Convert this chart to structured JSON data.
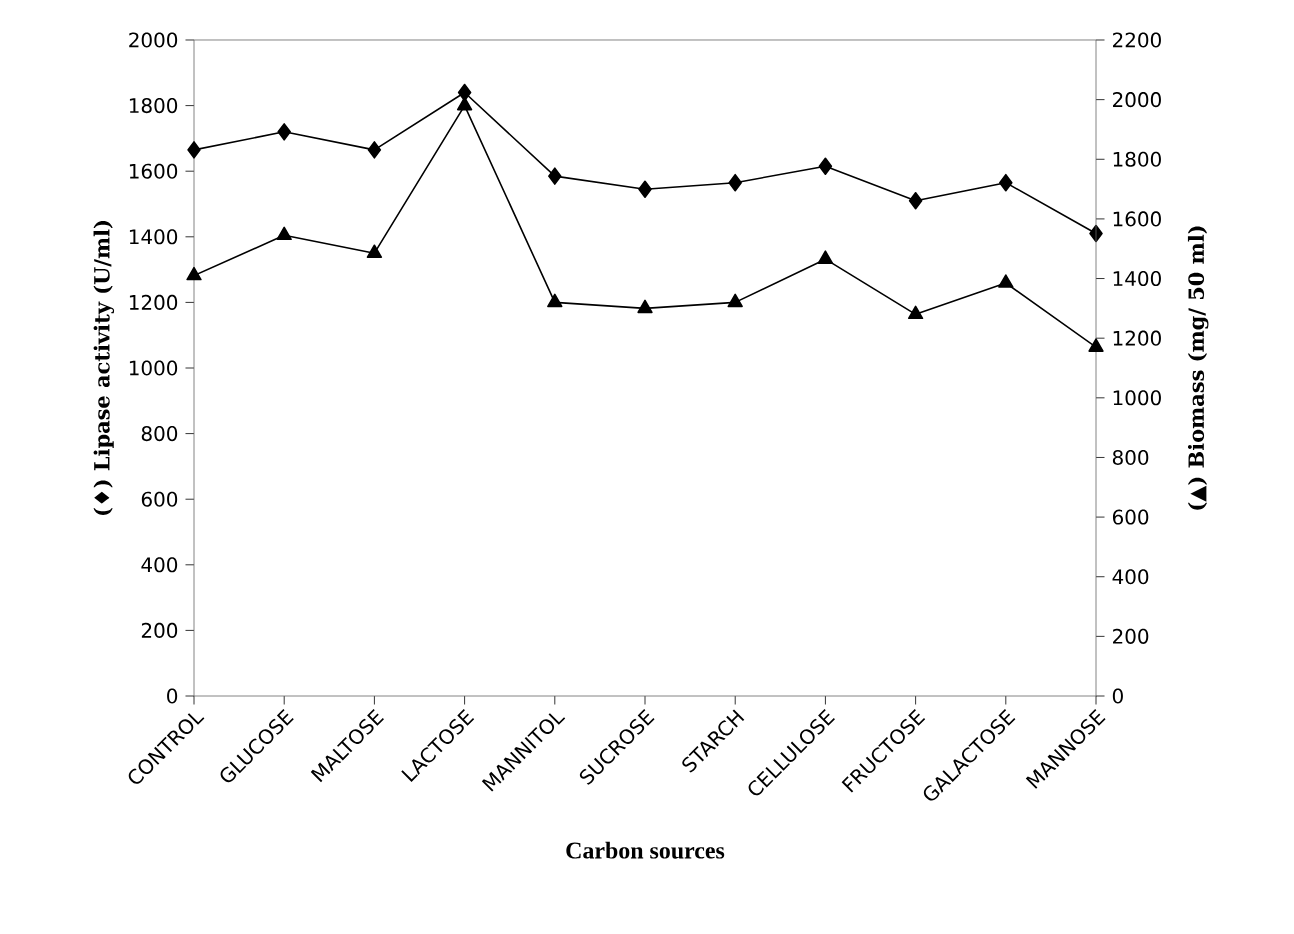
{
  "chart_data": {
    "type": "line",
    "xlabel": "Carbon sources",
    "ylabel": "(♦) Lipase activity (U/ml)",
    "y2label": "(▲) Biomass (mg/ 50 ml)",
    "categories": [
      "CONTROL",
      "GLUCOSE",
      "MALTOSE",
      "LACTOSE",
      "MANNITOL",
      "SUCROSE",
      "STARCH",
      "CELLULOSE",
      "FRUCTOSE",
      "GALACTOSE",
      "MANNOSE"
    ],
    "series": [
      {
        "color": "#000000",
        "marker": "diamond",
        "values": [
          1665,
          1720,
          1665,
          1840,
          1585,
          1545,
          1565,
          1615,
          1510,
          1565,
          1410
        ]
      },
      {
        "color": "#000000",
        "marker": "triangle",
        "axis": "y2",
        "values": [
          1410,
          1545,
          1485,
          1980,
          1320,
          1300,
          1320,
          1465,
          1280,
          1385,
          1170
        ]
      }
    ],
    "ylim": [
      0,
      2000
    ],
    "yticks": [
      0,
      200,
      400,
      600,
      800,
      1000,
      1200,
      1400,
      1600,
      1800,
      2000
    ],
    "y2lim": [
      0,
      2200
    ],
    "y2ticks": [
      0,
      200,
      400,
      600,
      800,
      1000,
      1200,
      1400,
      1600,
      1800,
      2000,
      2200
    ],
    "grid": false,
    "line_style": "solid"
  }
}
